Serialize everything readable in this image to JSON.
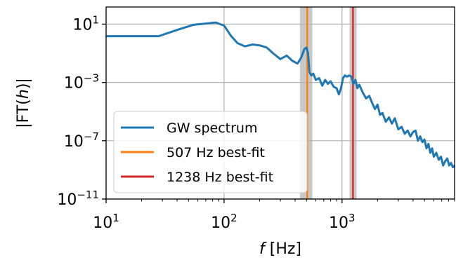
{
  "chart_data": {
    "type": "line",
    "xlabel_italic": "f",
    "xlabel_rest": " [Hz]",
    "ylabel": "|FT(h)|",
    "ylabel_parts": {
      "pre": "|FT(",
      "italic": "h",
      "post": ")|"
    },
    "x_scale": "log",
    "y_scale": "log",
    "xlim": [
      10,
      9000
    ],
    "ylim": [
      1e-11,
      150
    ],
    "grid": true,
    "x_ticks": [
      {
        "value": 10,
        "base": "10",
        "exp": "1"
      },
      {
        "value": 100,
        "base": "10",
        "exp": "2"
      },
      {
        "value": 1000,
        "base": "10",
        "exp": "3"
      }
    ],
    "y_ticks": [
      {
        "value": 10,
        "base": "10",
        "exp": "1"
      },
      {
        "value": 0.001,
        "base": "10",
        "exp": "−3"
      },
      {
        "value": 1e-07,
        "base": "10",
        "exp": "−7"
      },
      {
        "value": 1e-11,
        "base": "10",
        "exp": "−11"
      }
    ],
    "shaded_bands": [
      {
        "x_range": [
          440,
          560
        ],
        "color": "#c8c8c8"
      },
      {
        "x_range": [
          1160,
          1330
        ],
        "color": "#c8c8c8"
      }
    ],
    "vertical_lines": [
      {
        "name": "507 Hz best-fit",
        "x": 507,
        "color": "#ff7f0e"
      },
      {
        "name": "1238 Hz best-fit",
        "x": 1238,
        "color": "#d62728"
      }
    ],
    "legend_placement": "lower-left",
    "series": [
      {
        "name": "GW spectrum",
        "color": "#1f77b4",
        "x": [
          10,
          15,
          20,
          28,
          40,
          55,
          70,
          85,
          100,
          115,
          130,
          150,
          175,
          200,
          230,
          260,
          300,
          340,
          380,
          420,
          450,
          480,
          500,
          515,
          530,
          550,
          570,
          600,
          640,
          680,
          720,
          760,
          800,
          850,
          900,
          940,
          980,
          1020,
          1060,
          1100,
          1150,
          1200,
          1250,
          1300,
          1350,
          1400,
          1500,
          1600,
          1700,
          1800,
          1900,
          2000,
          2100,
          2200,
          2350,
          2500,
          2650,
          2800,
          3000,
          3200,
          3400,
          3600,
          3800,
          4000,
          4200,
          4400,
          4600,
          4800,
          5000,
          5200,
          5400,
          5600,
          5800,
          6000,
          6300,
          6600,
          6900,
          7200,
          7500,
          7800,
          8100,
          8400,
          8700,
          9000
        ],
        "y": [
          1.5,
          1.5,
          1.5,
          1.5,
          4,
          9,
          11,
          13,
          8,
          1.5,
          0.5,
          0.3,
          0.4,
          0.35,
          0.25,
          0.1,
          0.04,
          0.07,
          0.03,
          0.02,
          0.05,
          0.2,
          0.25,
          0.1,
          0.005,
          0.003,
          0.004,
          0.0015,
          0.002,
          0.0006,
          0.0015,
          0.0008,
          0.0012,
          0.0005,
          0.0004,
          0.00015,
          0.0004,
          0.002,
          0.003,
          0.0025,
          0.003,
          0.0025,
          0.0008,
          0.0015,
          0.0004,
          0.0007,
          0.0002,
          8e-05,
          0.00012,
          4e-05,
          1.5e-05,
          3e-05,
          6e-06,
          8e-06,
          2e-06,
          4e-06,
          1.5e-06,
          3.5e-06,
          6e-07,
          9e-07,
          3e-07,
          5e-07,
          2e-07,
          4e-07,
          5e-07,
          1e-07,
          2e-07,
          8e-08,
          1.2e-07,
          3e-08,
          6e-08,
          1.5e-08,
          3e-08,
          8e-09,
          1.5e-08,
          5e-09,
          8e-09,
          2e-09,
          4e-09,
          6e-09,
          2e-09,
          3e-09,
          1.5e-09,
          2e-09
        ]
      }
    ]
  }
}
